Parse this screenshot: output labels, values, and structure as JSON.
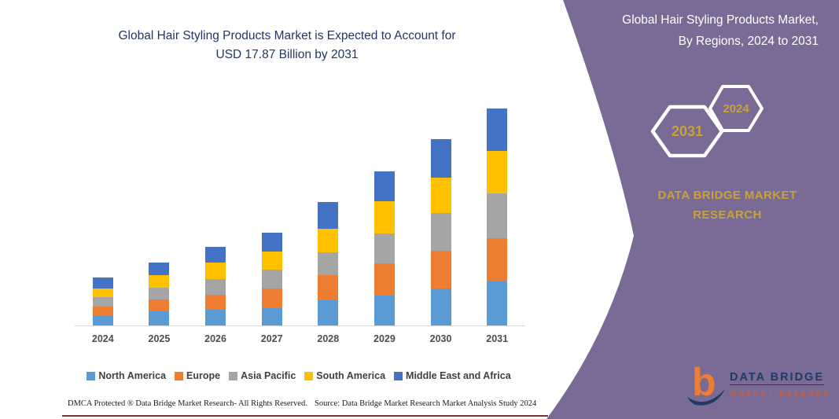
{
  "main_chart": {
    "title_line1": "Global Hair Styling Products Market is Expected to Account for",
    "title_line2": "USD 17.87 Billion by 2031"
  },
  "side_panel": {
    "background_color": "#7A6A96",
    "accent_gold": "#C9A13B",
    "title_line1": "Global Hair Styling Products Market,",
    "title_line2": "By Regions, 2024 to 2031",
    "badge_back_year": "2024",
    "badge_front_year": "2031",
    "brand_line1": "DATA BRIDGE MARKET",
    "brand_line2": "RESEARCH",
    "logo": {
      "mark_letter": "b",
      "name_top": "DATA BRIDGE",
      "name_bottom": "MARKET RESEARCH"
    }
  },
  "footer": {
    "dmca_text": "DMCA Protected ® Data Bridge Market Research-  All Rights Reserved.",
    "source_text": "Source: Data Bridge Market Research  Market Analysis Study 2024"
  },
  "chart_data": {
    "type": "bar",
    "stacked": true,
    "title": "Global Hair Styling Products Market is Expected to Account for USD 17.87 Billion by 2031",
    "unit": "USD Billion",
    "xlabel": "",
    "ylabel": "",
    "ylim": [
      0,
      19
    ],
    "grid": false,
    "legend_position": "bottom",
    "categories": [
      "2024",
      "2025",
      "2026",
      "2027",
      "2028",
      "2029",
      "2030",
      "2031"
    ],
    "series": [
      {
        "name": "North America",
        "color": "#5B9BD5",
        "values": [
          0.78,
          1.15,
          1.3,
          1.4,
          2.1,
          2.45,
          3.05,
          3.62
        ]
      },
      {
        "name": "Europe",
        "color": "#ED7D31",
        "values": [
          0.78,
          0.97,
          1.25,
          1.65,
          2.05,
          2.7,
          3.1,
          3.56
        ]
      },
      {
        "name": "Asia Pacific",
        "color": "#A5A5A5",
        "values": [
          0.78,
          0.97,
          1.3,
          1.55,
          1.9,
          2.45,
          3.1,
          3.69
        ]
      },
      {
        "name": "South America",
        "color": "#FFC000",
        "values": [
          0.71,
          1.08,
          1.3,
          1.5,
          1.95,
          2.65,
          2.92,
          3.5
        ]
      },
      {
        "name": "Middle East and Africa",
        "color": "#4472C4",
        "values": [
          0.9,
          1.0,
          1.33,
          1.55,
          2.2,
          2.46,
          3.18,
          3.5
        ]
      }
    ],
    "totals": [
      3.95,
      5.17,
      6.48,
      7.65,
      10.2,
      12.71,
      15.35,
      17.87
    ]
  }
}
